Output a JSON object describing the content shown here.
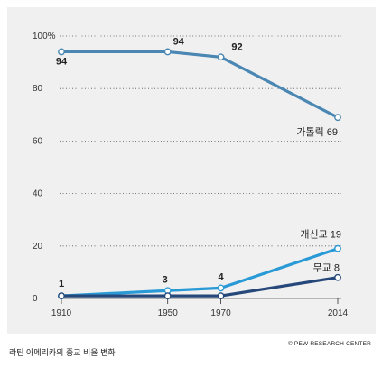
{
  "chart_data": {
    "type": "line",
    "x": [
      1910,
      1950,
      1970,
      2014
    ],
    "x_tick_labels": [
      "1910",
      "1950",
      "1970",
      "2014"
    ],
    "y_tick_labels": [
      "100%",
      "80",
      "60",
      "40",
      "20",
      "0"
    ],
    "y_ticks": [
      100,
      80,
      60,
      40,
      20,
      0
    ],
    "ylim": [
      0,
      100
    ],
    "grid": true,
    "series": [
      {
        "name": "가톨릭",
        "end_label": "가톨릭 69",
        "values": [
          94,
          94,
          92,
          69
        ],
        "color": "#4a87b2",
        "point_labels": [
          "94",
          "94",
          "92",
          ""
        ]
      },
      {
        "name": "개신교",
        "end_label": "개신교 19",
        "values": [
          1,
          3,
          4,
          19
        ],
        "color": "#2a9ad6",
        "point_labels": [
          "1",
          "3",
          "4",
          ""
        ]
      },
      {
        "name": "무교",
        "end_label": "무교 8",
        "values": [
          1,
          1,
          1,
          8
        ],
        "color": "#25477a",
        "point_labels": [
          "",
          "",
          "",
          ""
        ]
      }
    ]
  },
  "caption": "라틴 아메리카의 종교 비율 변화",
  "source": "© PEW RESEARCH CENTER"
}
